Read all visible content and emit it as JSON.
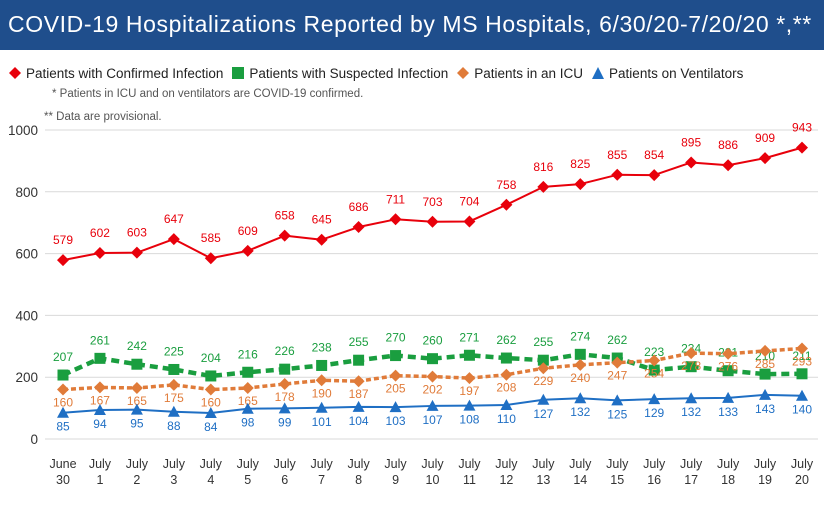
{
  "title": "COVID-19 Hospitalizations Reported by MS Hospitals, 6/30/20-7/20/20 *,**",
  "notes": {
    "note1": "* Patients in ICU and on ventilators are COVID-19 confirmed.",
    "note2": "** Data are provisional."
  },
  "chart_data": {
    "type": "line",
    "title": "COVID-19 Hospitalizations Reported by MS Hospitals, 6/30/20-7/20/20 *,**",
    "xlabel": "",
    "ylabel": "",
    "ylim": [
      0,
      1000
    ],
    "yticks": [
      0,
      200,
      400,
      600,
      800,
      1000
    ],
    "grid": true,
    "legend_position": "top",
    "categories": [
      [
        "June",
        "30"
      ],
      [
        "July",
        "1"
      ],
      [
        "July",
        "2"
      ],
      [
        "July",
        "3"
      ],
      [
        "July",
        "4"
      ],
      [
        "July",
        "5"
      ],
      [
        "July",
        "6"
      ],
      [
        "July",
        "7"
      ],
      [
        "July",
        "8"
      ],
      [
        "July",
        "9"
      ],
      [
        "July",
        "10"
      ],
      [
        "July",
        "11"
      ],
      [
        "July",
        "12"
      ],
      [
        "July",
        "13"
      ],
      [
        "July",
        "14"
      ],
      [
        "July",
        "15"
      ],
      [
        "July",
        "16"
      ],
      [
        "July",
        "17"
      ],
      [
        "July",
        "18"
      ],
      [
        "July",
        "19"
      ],
      [
        "July",
        "20"
      ]
    ],
    "series": [
      {
        "name": "Patients with Confirmed Infection",
        "color": "#e8000b",
        "marker": "diamond",
        "dashed": false,
        "values": [
          579,
          602,
          603,
          647,
          585,
          609,
          658,
          645,
          686,
          711,
          703,
          704,
          758,
          816,
          825,
          855,
          854,
          895,
          886,
          909,
          943
        ]
      },
      {
        "name": "Patients with Suspected Infection",
        "color": "#1a9e3f",
        "marker": "square",
        "dashed": true,
        "values": [
          207,
          261,
          242,
          225,
          204,
          216,
          226,
          238,
          255,
          270,
          260,
          271,
          262,
          255,
          274,
          262,
          223,
          234,
          221,
          210,
          211
        ]
      },
      {
        "name": "Patients in an ICU",
        "color": "#e07b39",
        "marker": "diamond",
        "dashed": true,
        "values": [
          160,
          167,
          165,
          175,
          160,
          165,
          178,
          190,
          187,
          205,
          202,
          197,
          208,
          229,
          240,
          247,
          254,
          278,
          276,
          285,
          293
        ]
      },
      {
        "name": "Patients on Ventilators",
        "color": "#1f6fc4",
        "marker": "triangle",
        "dashed": false,
        "values": [
          85,
          94,
          95,
          88,
          84,
          98,
          99,
          101,
          104,
          103,
          107,
          108,
          110,
          127,
          132,
          125,
          129,
          132,
          133,
          143,
          140
        ]
      }
    ]
  }
}
